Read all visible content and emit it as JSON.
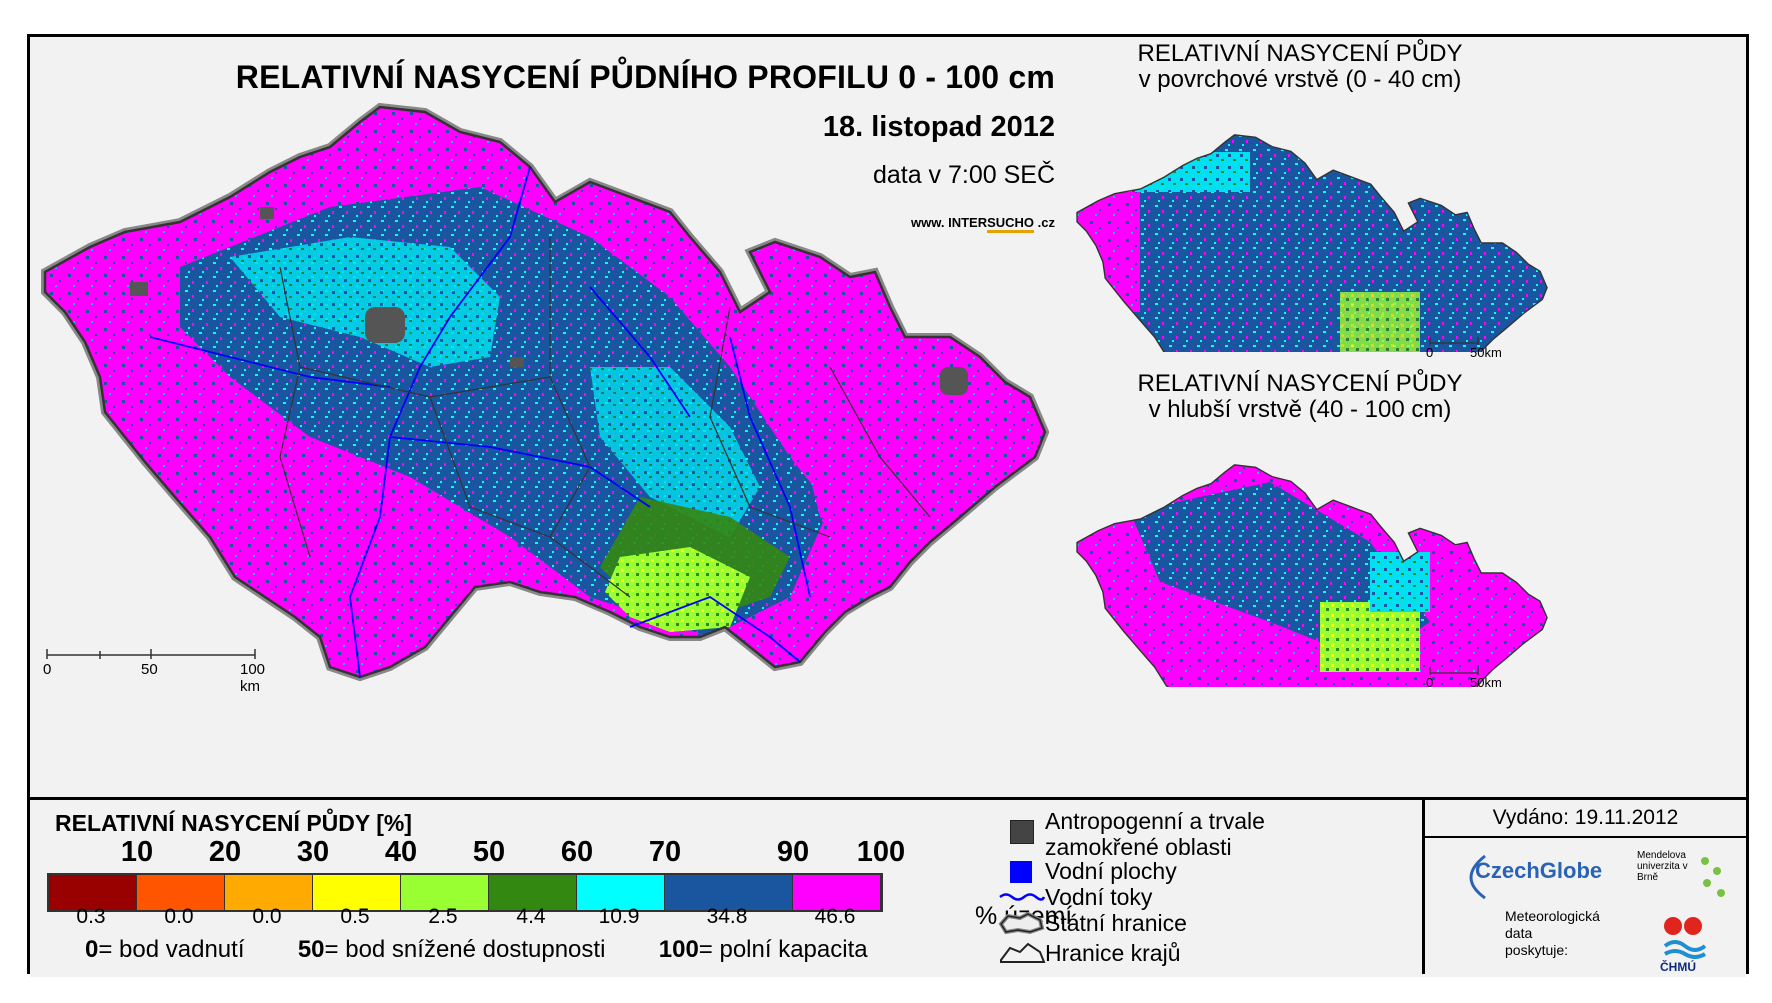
{
  "main_title": "RELATIVNÍ NASYCENÍ PŮDNÍHO PROFILU 0 - 100 cm",
  "date": "18. listopad 2012",
  "time_note": "data v 7:00 SEČ",
  "website": {
    "prefix": "www. INTER",
    "highlight": "SUCHO",
    "suffix": " .cz"
  },
  "inset_top": {
    "title_line1": "RELATIVNÍ NASYCENÍ PŮDY",
    "title_line2": "v povrchové vrstvě (0 - 40 cm)",
    "scale_0": "0",
    "scale_50": "50km"
  },
  "inset_bottom": {
    "title_line1": "RELATIVNÍ NASYCENÍ PŮDY",
    "title_line2": "v hlubší vrstvě (40 - 100 cm)",
    "scale_0": "0",
    "scale_50": "50km"
  },
  "main_scale": {
    "label_0": "0",
    "label_50": "50",
    "label_100": "100 km"
  },
  "legend": {
    "title": "RELATIVNÍ NASYCENÍ PŮDY [%]",
    "ticks": [
      "10",
      "20",
      "30",
      "40",
      "50",
      "60",
      "70",
      "90",
      "100"
    ],
    "classes": [
      {
        "color": "#990000",
        "percent": "0.3"
      },
      {
        "color": "#ff5500",
        "percent": "0.0"
      },
      {
        "color": "#ffaa00",
        "percent": "0.0"
      },
      {
        "color": "#ffff00",
        "percent": "0.5"
      },
      {
        "color": "#99ff33",
        "percent": "2.5"
      },
      {
        "color": "#338811",
        "percent": "4.4"
      },
      {
        "color": "#00ffff",
        "percent": "10.9"
      },
      {
        "color": "#1a55a0",
        "percent": "34.8"
      },
      {
        "color": "#ff00ff",
        "percent": "46.6"
      }
    ],
    "unit": "% území",
    "def_0_num": "0",
    "def_0_text": "= bod vadnutí",
    "def_50_num": "50",
    "def_50_text": "= bod snížené dostupnosti",
    "def_100_num": "100",
    "def_100_text": "= polní kapacita"
  },
  "symbols": {
    "wetland_line1": "Antropogenní a trvale",
    "wetland_line2": "zamokřené oblasti",
    "water": "Vodní plochy",
    "rivers": "Vodní toky",
    "state_border": "Státní hranice",
    "region_border": "Hranice krajů"
  },
  "issue": {
    "issued": "Vydáno: 19.11.2012",
    "czechglobe": "CzechGlobe",
    "mendel": "Mendelova univerzita v Brně",
    "meteo_line1": "Meteorologická",
    "meteo_line2": "data",
    "meteo_line3": "poskytuje:",
    "chmu": "ČHMÚ"
  },
  "colors": {
    "magenta": "#ff00ff",
    "dark_blue": "#1a55a0",
    "cyan": "#00ffff",
    "green": "#338811",
    "lime": "#99ff33",
    "yellow": "#ffff00",
    "grey": "#555555",
    "river": "#0000ff"
  }
}
